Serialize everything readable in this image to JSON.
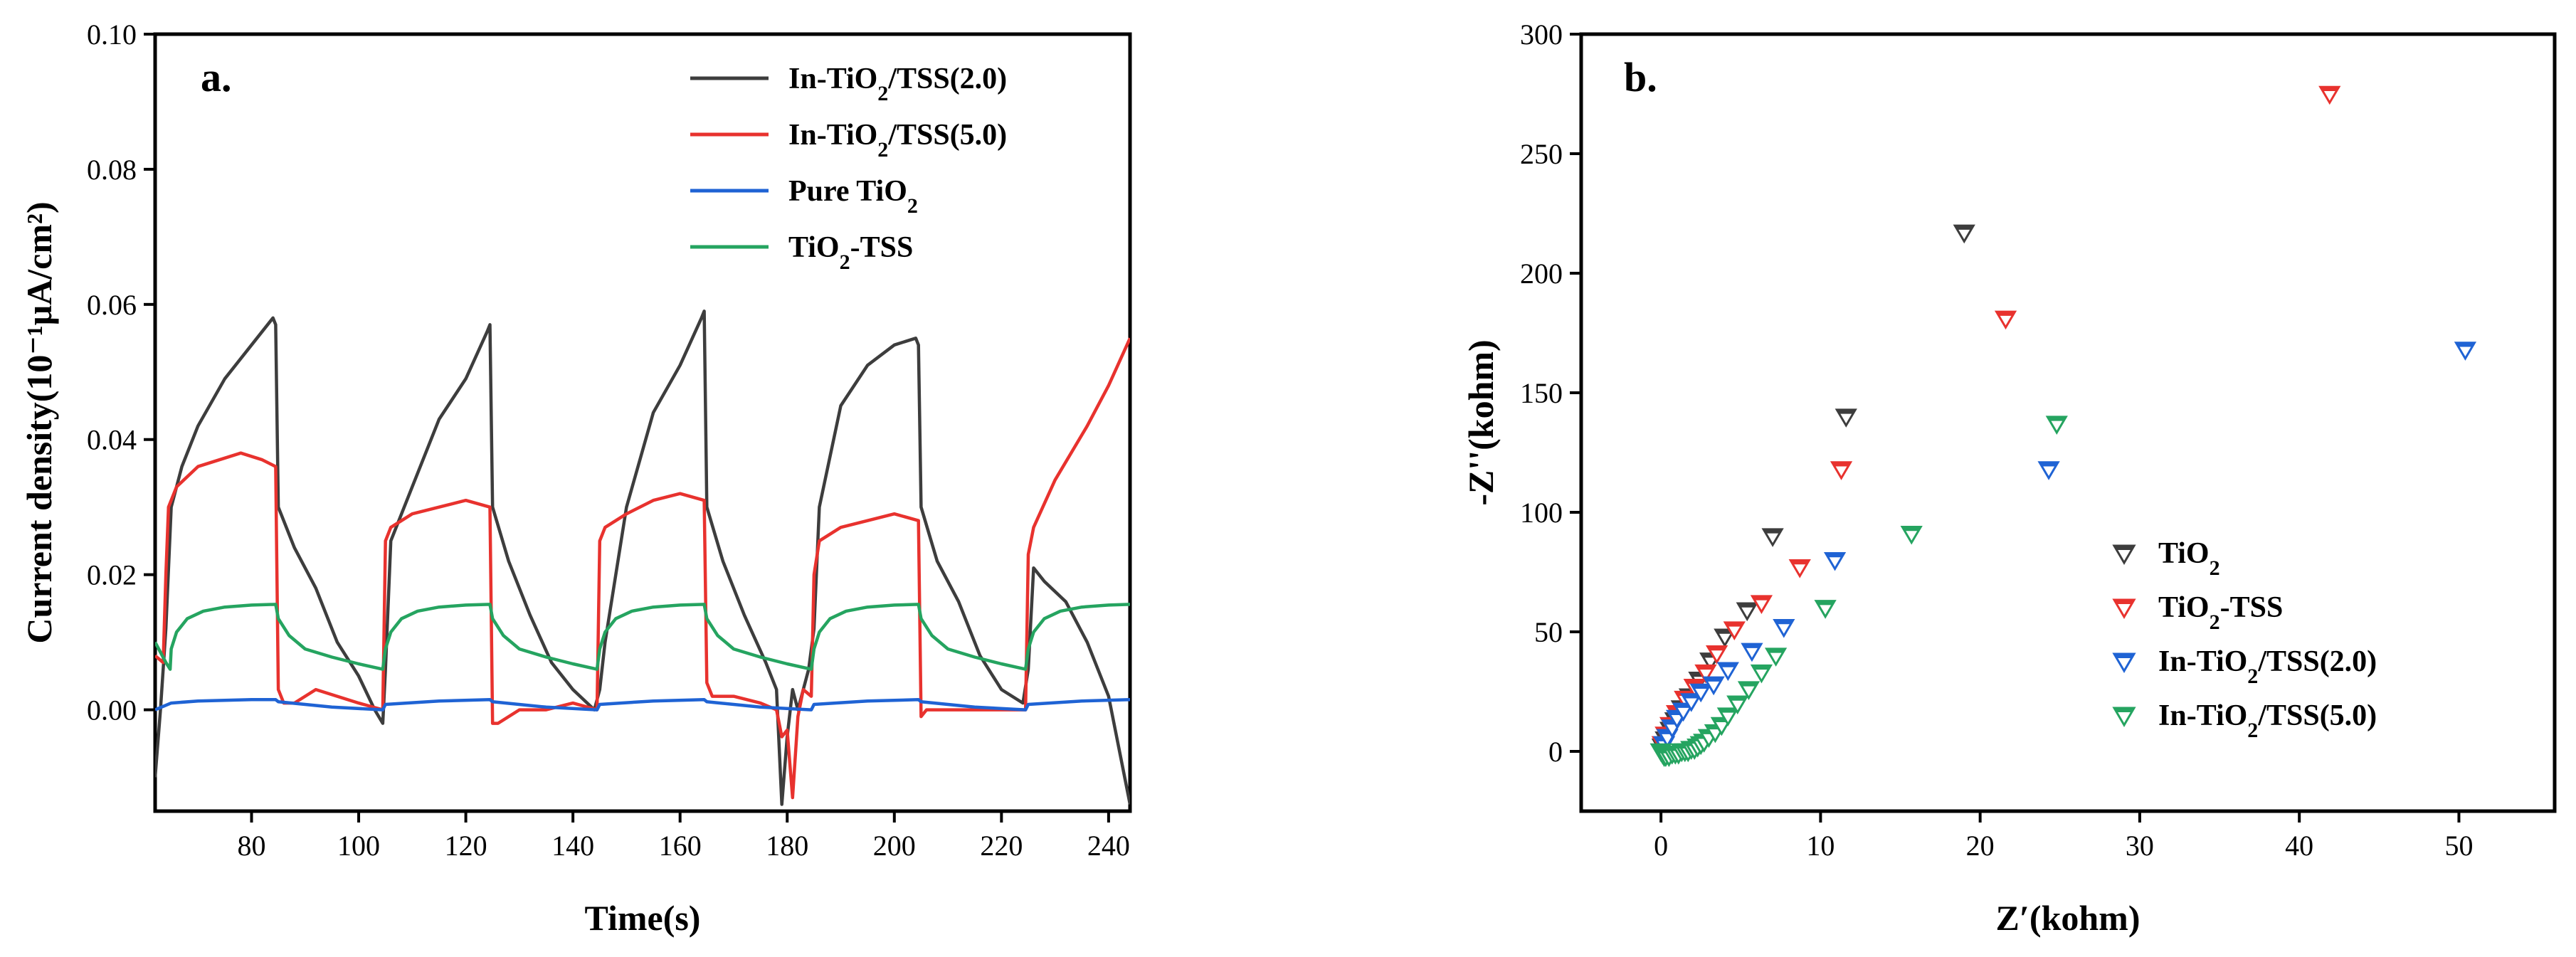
{
  "chart_data": [
    {
      "type": "line",
      "panel_label": "a.",
      "xlabel": "Time(s)",
      "ylabel": "Current density(10⁻¹μA/cm²)",
      "xlim": [
        62,
        244
      ],
      "ylim": [
        -0.015,
        0.1
      ],
      "x_ticks": [
        80,
        100,
        120,
        140,
        160,
        180,
        200,
        220,
        240
      ],
      "y_ticks": [
        0.0,
        0.02,
        0.04,
        0.06,
        0.08,
        0.1
      ],
      "y_tick_labels": [
        "0.00",
        "0.02",
        "0.04",
        "0.06",
        "0.08",
        "0.10"
      ],
      "x_tick_labels": [
        "80",
        "100",
        "120",
        "140",
        "160",
        "180",
        "200",
        "220",
        "240"
      ],
      "legend_position": "top-right",
      "series": [
        {
          "name": "In-TiO₂/TSS(2.0)",
          "color": "#3d3d3d",
          "x": [
            62,
            63,
            64,
            65,
            67,
            70,
            75,
            80,
            84,
            84.5,
            85,
            88,
            92,
            96,
            100,
            103,
            104.5,
            105,
            106,
            110,
            115,
            120,
            124,
            124.5,
            125,
            128,
            132,
            136,
            140,
            144,
            145,
            146,
            150,
            155,
            160,
            164,
            164.5,
            165,
            168,
            172,
            176,
            178,
            179,
            180,
            181,
            182,
            184,
            185,
            186,
            190,
            195,
            200,
            204,
            204.5,
            205,
            208,
            212,
            216,
            220,
            224,
            225,
            226,
            228,
            232,
            236,
            240,
            243,
            244
          ],
          "y": [
            -0.01,
            0.0,
            0.012,
            0.03,
            0.036,
            0.042,
            0.049,
            0.054,
            0.058,
            0.057,
            0.03,
            0.024,
            0.018,
            0.01,
            0.005,
            0.0,
            -0.002,
            0.006,
            0.025,
            0.033,
            0.043,
            0.049,
            0.056,
            0.057,
            0.03,
            0.022,
            0.014,
            0.007,
            0.003,
            0.0,
            0.003,
            0.01,
            0.03,
            0.044,
            0.051,
            0.058,
            0.059,
            0.03,
            0.022,
            0.014,
            0.007,
            0.003,
            -0.014,
            -0.004,
            0.003,
            0.0,
            0.006,
            0.012,
            0.03,
            0.045,
            0.051,
            0.054,
            0.055,
            0.054,
            0.03,
            0.022,
            0.016,
            0.008,
            0.003,
            0.001,
            0.006,
            0.021,
            0.019,
            0.016,
            0.01,
            0.002,
            -0.01,
            -0.014
          ]
        },
        {
          "name": "In-TiO₂/TSS(5.0)",
          "color": "#e8322e",
          "x": [
            62,
            63.5,
            64,
            64.5,
            66,
            70,
            74,
            78,
            82,
            84.5,
            85,
            86,
            88,
            92,
            96,
            100,
            104.5,
            105,
            106,
            110,
            115,
            120,
            124.5,
            125,
            126,
            130,
            135,
            140,
            144.5,
            145,
            146,
            150,
            155,
            160,
            164.5,
            165,
            166,
            170,
            175,
            178,
            179,
            180,
            181,
            182,
            183,
            184.5,
            185,
            186,
            190,
            195,
            200,
            204.5,
            205,
            206,
            210,
            215,
            220,
            224.5,
            225,
            226,
            230,
            236,
            240,
            244
          ],
          "y": [
            0.008,
            0.007,
            0.02,
            0.03,
            0.033,
            0.036,
            0.037,
            0.038,
            0.037,
            0.036,
            0.003,
            0.001,
            0.001,
            0.003,
            0.002,
            0.001,
            0.0,
            0.025,
            0.027,
            0.029,
            0.03,
            0.031,
            0.03,
            -0.002,
            -0.002,
            0.0,
            0.0,
            0.001,
            0.0,
            0.025,
            0.027,
            0.029,
            0.031,
            0.032,
            0.031,
            0.004,
            0.002,
            0.002,
            0.001,
            0.0,
            -0.004,
            -0.003,
            -0.013,
            -0.001,
            0.003,
            0.002,
            0.02,
            0.025,
            0.027,
            0.028,
            0.029,
            0.028,
            -0.001,
            0.0,
            0.0,
            0.0,
            0.0,
            0.0,
            0.023,
            0.027,
            0.034,
            0.042,
            0.048,
            0.055
          ]
        },
        {
          "name": "Pure TiO₂",
          "color": "#1f63d4",
          "x": [
            62,
            65,
            70,
            80,
            84.5,
            85,
            95,
            104.5,
            105,
            115,
            124.5,
            125,
            135,
            144.5,
            145,
            155,
            164.5,
            165,
            175,
            184.5,
            185,
            195,
            204.5,
            205,
            215,
            224.5,
            225,
            235,
            244
          ],
          "y": [
            0.0,
            0.001,
            0.0013,
            0.0015,
            0.0015,
            0.0012,
            0.0004,
            0.0,
            0.0008,
            0.0013,
            0.0015,
            0.0012,
            0.0004,
            0.0,
            0.0008,
            0.0013,
            0.0015,
            0.0012,
            0.0004,
            0.0,
            0.0008,
            0.0013,
            0.0015,
            0.0012,
            0.0004,
            0.0,
            0.0008,
            0.0013,
            0.0015
          ]
        },
        {
          "name": "TiO₂-TSS",
          "color": "#25a460",
          "x": [
            62,
            64,
            64.8,
            65,
            66,
            68,
            71,
            75,
            80,
            84.5,
            85,
            87,
            90,
            95,
            100,
            104.5,
            105,
            106,
            108,
            111,
            115,
            120,
            124.5,
            125,
            127,
            130,
            135,
            140,
            144.5,
            145,
            146,
            148,
            151,
            155,
            160,
            164.5,
            165,
            167,
            170,
            175,
            180,
            184.5,
            185,
            186,
            188,
            191,
            195,
            200,
            204.5,
            205,
            207,
            210,
            215,
            220,
            224.5,
            225,
            226,
            228,
            231,
            235,
            240,
            244
          ],
          "y": [
            0.01,
            0.007,
            0.006,
            0.009,
            0.0115,
            0.0135,
            0.0146,
            0.0152,
            0.0155,
            0.0156,
            0.0135,
            0.011,
            0.009,
            0.0078,
            0.0068,
            0.006,
            0.009,
            0.0115,
            0.0135,
            0.0146,
            0.0152,
            0.0155,
            0.0156,
            0.0135,
            0.011,
            0.009,
            0.0078,
            0.0068,
            0.006,
            0.009,
            0.0115,
            0.0135,
            0.0146,
            0.0152,
            0.0155,
            0.0156,
            0.0135,
            0.011,
            0.009,
            0.0078,
            0.0068,
            0.006,
            0.009,
            0.0115,
            0.0135,
            0.0146,
            0.0152,
            0.0155,
            0.0156,
            0.0135,
            0.011,
            0.009,
            0.0078,
            0.0068,
            0.006,
            0.009,
            0.0115,
            0.0135,
            0.0146,
            0.0152,
            0.0155,
            0.0156
          ]
        }
      ]
    },
    {
      "type": "scatter",
      "panel_label": "b.",
      "xlabel": "Z′(kohm)",
      "ylabel": "-Z''(kohm)",
      "xlim": [
        -5,
        56
      ],
      "ylim": [
        -25,
        300
      ],
      "x_ticks": [
        0,
        10,
        20,
        30,
        40,
        50
      ],
      "y_ticks": [
        0,
        50,
        100,
        150,
        200,
        250,
        300
      ],
      "x_tick_labels": [
        "0",
        "10",
        "20",
        "30",
        "40",
        "50"
      ],
      "y_tick_labels": [
        "0",
        "50",
        "100",
        "150",
        "200",
        "250",
        "300"
      ],
      "legend_position": "center-right",
      "marker": "open down-triangle",
      "series": [
        {
          "name": "TiO₂",
          "color": "#3d3d3d",
          "x": [
            0.1,
            0.3,
            0.6,
            0.9,
            1.3,
            1.8,
            2.4,
            3.1,
            4.0,
            5.4,
            7.0,
            11.6,
            19.0
          ],
          "y": [
            2,
            5,
            9,
            13,
            18,
            23,
            30,
            38,
            48,
            59,
            90,
            140,
            217
          ]
        },
        {
          "name": "TiO₂-TSS",
          "color": "#e8322e",
          "x": [
            0.1,
            0.3,
            0.6,
            1.0,
            1.5,
            2.1,
            2.8,
            3.5,
            4.6,
            6.3,
            8.7,
            11.3,
            21.6,
            41.9
          ],
          "y": [
            3,
            7,
            11,
            16,
            22,
            27,
            33,
            41,
            51,
            62,
            77,
            118,
            181,
            275
          ]
        },
        {
          "name": "In-TiO₂/TSS(2.0)",
          "color": "#1f63d4",
          "x": [
            0.2,
            0.4,
            0.7,
            1.0,
            1.4,
            1.9,
            2.5,
            3.3,
            4.2,
            5.7,
            7.7,
            10.9,
            24.3,
            50.4
          ],
          "y": [
            3,
            6,
            10,
            14,
            17,
            21,
            25,
            28,
            34,
            42,
            52,
            80,
            118,
            168
          ]
        },
        {
          "name": "In-TiO₂/TSS(5.0)",
          "color": "#25a460",
          "x": [
            0.0,
            0.1,
            0.2,
            0.3,
            0.5,
            0.7,
            0.9,
            1.1,
            1.3,
            1.5,
            1.7,
            1.9,
            2.1,
            2.3,
            2.5,
            2.7,
            3.0,
            3.4,
            3.8,
            4.2,
            4.8,
            5.5,
            6.3,
            7.2,
            10.3,
            15.7,
            24.8
          ],
          "y": [
            0,
            -1,
            -2,
            -2,
            -2,
            -1,
            -1,
            -1,
            0,
            0,
            0,
            1,
            1,
            2,
            3,
            4,
            6,
            8,
            11,
            15,
            20,
            26,
            33,
            40,
            60,
            91,
            137
          ]
        }
      ]
    }
  ]
}
